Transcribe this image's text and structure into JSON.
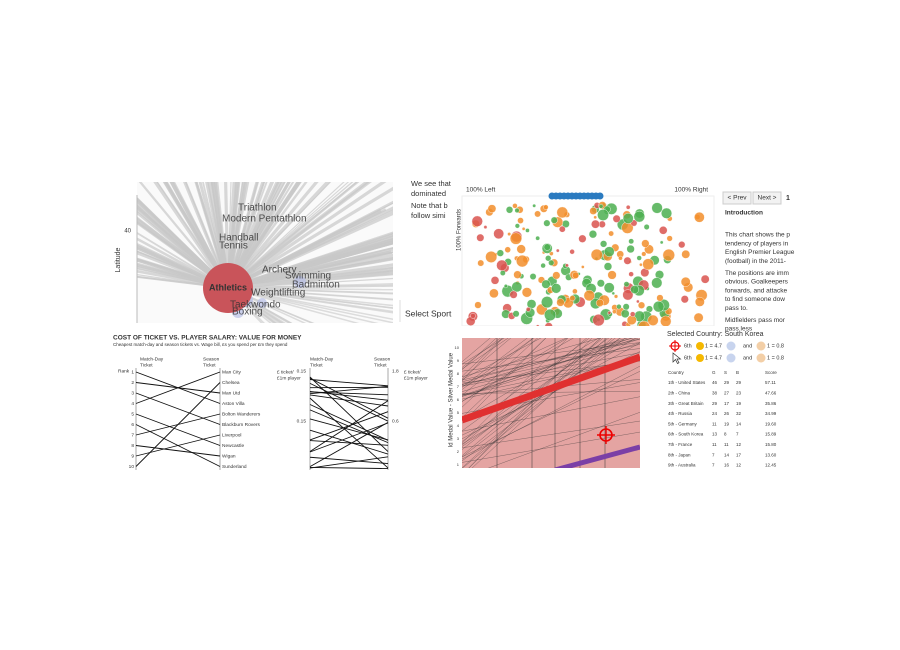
{
  "sports_map": {
    "y_axis_label": "Latitude",
    "y_tick": "40",
    "highlight": "Athletics",
    "labels": [
      "Triathlon",
      "Modern Pentathlon",
      "Handball",
      "Tennis",
      "Archery",
      "Swimming",
      "Badminton",
      "Weightlifting",
      "Taekwondo",
      "Boxing"
    ]
  },
  "story_text": {
    "lines": [
      "We see that",
      "dominated",
      "Note that b",
      "follow simi"
    ],
    "select_label": "Select Sport"
  },
  "pass_scatter": {
    "left_label": "100% Left",
    "right_label": "100% Right",
    "y_axis_label": "100% Forwards"
  },
  "intro": {
    "prev_button": "< Prev",
    "next_button": "Next >",
    "page": "1",
    "heading": "Introduction",
    "paragraphs": [
      [
        "This chart shows the p",
        "tendency of players in",
        "English Premier League",
        "(football) in the 2011-"
      ],
      [
        "The positions are imm",
        "obvious. Goalkeepers",
        "forwards, and attacke",
        "to find someone dow",
        "pass to."
      ],
      [
        "Midfielders pass mor",
        "pass less"
      ]
    ]
  },
  "ticket_salary": {
    "title": "COST OF TICKET VS. PLAYER SALARY: VALUE FOR MONEY",
    "subtitle": "Cheapest match-day and season tickets vs. Wage bill, £s you spend per £m they spend",
    "rank_label": "Rank",
    "left_header": [
      "Match-Day",
      "Ticket"
    ],
    "right_header": [
      "Season",
      "Ticket"
    ],
    "ranks": [
      "1",
      "2",
      "3",
      "4",
      "5",
      "6",
      "7",
      "8",
      "9",
      "10"
    ],
    "teams": [
      "Man City",
      "Chelsea",
      "Man Utd",
      "Aston Villa",
      "Bolton Wanderers",
      "Blackburn Rovers",
      "Liverpool",
      "Newcastle",
      "Wigan",
      "Sunderland"
    ],
    "ratio_label": [
      "£ ticket/",
      "£1m player"
    ],
    "left_ticks": [
      "0.15",
      "0.15"
    ],
    "right_ticks": [
      "1.8",
      "0.6"
    ]
  },
  "medal_chart": {
    "y_axis_label": "ld Medal Value - Silver Medal Value",
    "y_ticks": [
      "1",
      "2",
      "3",
      "4",
      "5",
      "6",
      "7",
      "8",
      "9",
      "10"
    ]
  },
  "medal_table": {
    "selected": "Selected Country: South Korea",
    "legend": [
      [
        "6th",
        "1 = 4.7",
        "and",
        "1 = 0.8"
      ],
      [
        "6th",
        "1 = 4.7",
        "and",
        "1 = 0.8"
      ]
    ],
    "columns": [
      "Country",
      "G",
      "S",
      "B",
      "Score"
    ],
    "rows": [
      [
        "1th - United States",
        "46",
        "29",
        "29",
        "57.11"
      ],
      [
        "2th - China",
        "38",
        "27",
        "23",
        "47.66"
      ],
      [
        "3th - Great Britain",
        "29",
        "17",
        "19",
        "35.86"
      ],
      [
        "4th - Russia",
        "24",
        "26",
        "32",
        "34.99"
      ],
      [
        "5th - Germany",
        "11",
        "19",
        "14",
        "19.60"
      ],
      [
        "6th - South Korea",
        "13",
        "8",
        "7",
        "15.89"
      ],
      [
        "7th - France",
        "11",
        "11",
        "12",
        "15.80"
      ],
      [
        "8th - Japan",
        "7",
        "14",
        "17",
        "13.60"
      ],
      [
        "9th - Australia",
        "7",
        "16",
        "12",
        "12.45"
      ]
    ]
  }
}
